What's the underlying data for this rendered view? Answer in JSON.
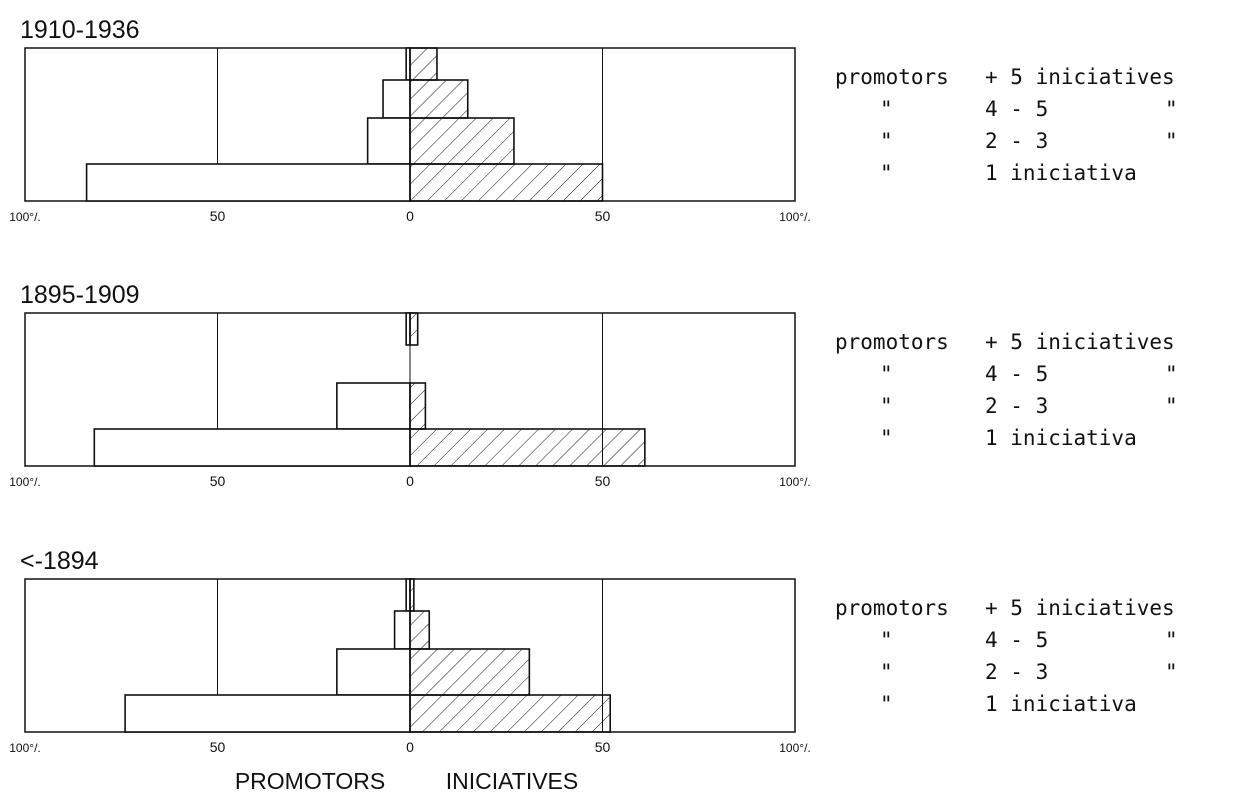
{
  "chart_data": [
    {
      "type": "bar",
      "orientation": "horizontal",
      "layout": "population pyramid",
      "title": "1910-1936",
      "categories": [
        "promotors + 5 iniciatives",
        "4 - 5",
        "2 - 3",
        "1 iniciativa"
      ],
      "series": [
        {
          "side": "left",
          "fill": "open",
          "values": [
            1,
            7,
            11,
            84
          ]
        },
        {
          "side": "right",
          "fill": "hatched",
          "values": [
            7,
            15,
            27,
            50
          ]
        }
      ],
      "x_ticks": [
        "100°/.",
        "50",
        "0",
        "50",
        "100°/."
      ],
      "xlim": [
        -100,
        100
      ],
      "grid": true
    },
    {
      "type": "bar",
      "orientation": "horizontal",
      "layout": "population pyramid",
      "title": "1895-1909",
      "categories": [
        "promotors + 5 iniciatives",
        "4 - 5",
        "2 - 3",
        "1 iniciativa"
      ],
      "series": [
        {
          "side": "left",
          "fill": "open",
          "values": [
            1,
            0,
            19,
            82
          ]
        },
        {
          "side": "right",
          "fill": "hatched",
          "values": [
            2,
            0,
            4,
            61
          ]
        }
      ],
      "x_ticks": [
        "100°/.",
        "50",
        "0",
        "50",
        "100°/."
      ],
      "xlim": [
        -100,
        100
      ],
      "grid": true
    },
    {
      "type": "bar",
      "orientation": "horizontal",
      "layout": "population pyramid",
      "title": "<-1894",
      "categories": [
        "promotors + 5 iniciatives",
        "4 - 5",
        "2 - 3",
        "1 iniciativa"
      ],
      "series": [
        {
          "side": "left",
          "fill": "open",
          "values": [
            1,
            4,
            19,
            74
          ]
        },
        {
          "side": "right",
          "fill": "hatched",
          "values": [
            1,
            5,
            31,
            52
          ]
        }
      ],
      "x_ticks": [
        "100°/.",
        "50",
        "0",
        "50",
        "100°/."
      ],
      "xlim": [
        -100,
        100
      ],
      "grid": true
    }
  ],
  "legend_rows": [
    [
      "promotors",
      "+ 5 iniciatives",
      ""
    ],
    [
      "\"",
      "4 - 5",
      "\""
    ],
    [
      "\"",
      "2 - 3",
      "\""
    ],
    [
      "\"",
      "1 iniciativa",
      ""
    ]
  ],
  "axis_captions": {
    "left": "PROMOTORS",
    "right": "INICIATIVES"
  },
  "colors": {
    "ink": "#111111",
    "background": "#ffffff"
  }
}
